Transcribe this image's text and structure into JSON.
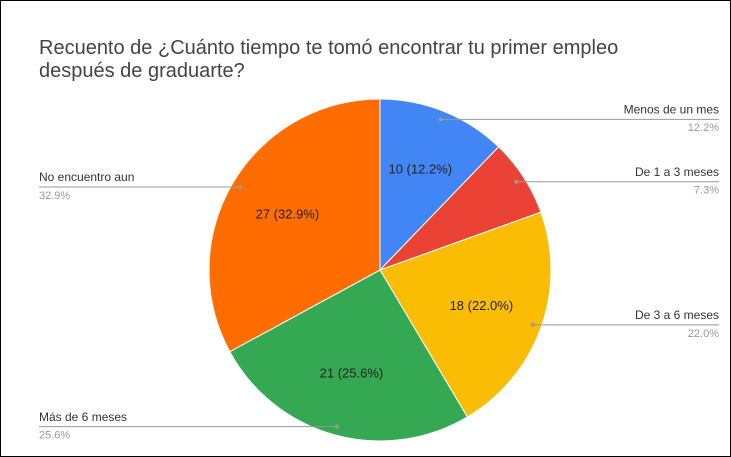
{
  "chart_data": {
    "type": "pie",
    "title": "Recuento de ¿Cuánto tiempo te tomó encontrar tu primer empleo después de graduarte?",
    "categories": [
      "Menos de un mes",
      "De 1 a 3 meses",
      "De 3 a 6 meses",
      "Más de 6 meses",
      "No encuentro aun"
    ],
    "values": [
      10,
      6,
      18,
      21,
      27
    ],
    "value_labels": [
      "10 (12.2%)",
      null,
      "18 (22.0%)",
      "21 (25.6%)",
      "27 (32.9%)"
    ],
    "percent_labels": [
      "12.2%",
      "7.3%",
      "22.0%",
      "25.6%",
      "32.9%"
    ],
    "colors": [
      "#4285f4",
      "#ea4335",
      "#fbbc04",
      "#34a853",
      "#ff6d01"
    ]
  }
}
